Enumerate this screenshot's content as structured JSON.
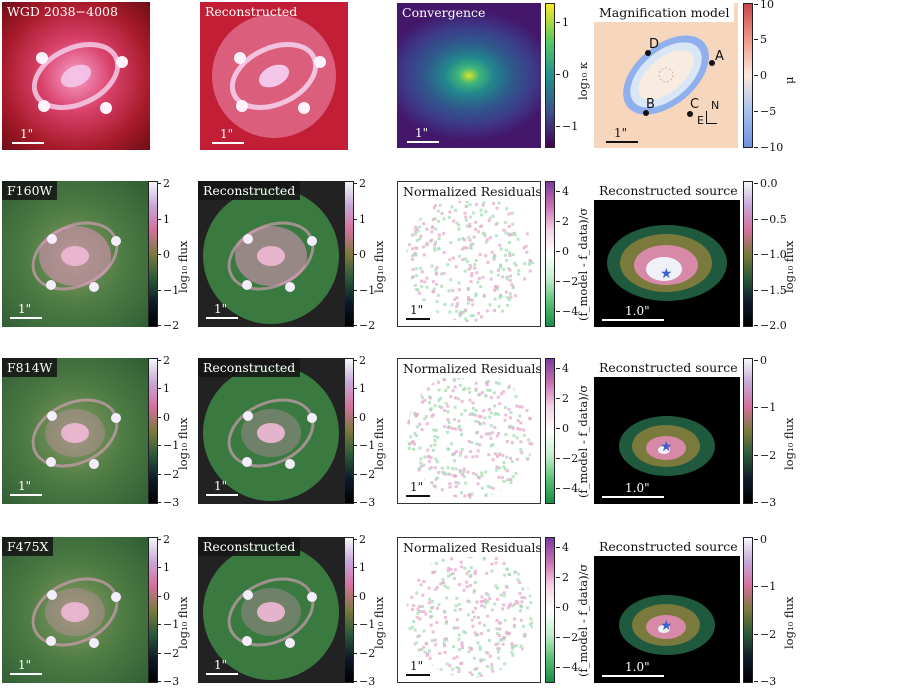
{
  "row1": {
    "p1_title": "WGD 2038−4008",
    "p2_title": "Reconstructed",
    "p3_title": "Convergence",
    "p4_title": "Magnification model",
    "scale": "1\"",
    "conv_ticks": [
      "1",
      "0",
      "−1"
    ],
    "conv_label": "log₁₀ κ",
    "mag_ticks": [
      "10",
      "5",
      "0",
      "−5",
      "−10"
    ],
    "mag_label": "μ",
    "images": [
      "A",
      "B",
      "C",
      "D"
    ],
    "compass": {
      "n": "N",
      "e": "E"
    }
  },
  "rows": [
    {
      "band": "F160W",
      "recon": "Reconstructed",
      "resid": "Normalized Residuals",
      "source": "Reconstructed source",
      "flux_ticks": [
        "2",
        "1",
        "0",
        "−1",
        "−2"
      ],
      "flux_label": "log₁₀ flux",
      "resid_ticks": [
        "4",
        "2",
        "0",
        "−2",
        "−4"
      ],
      "resid_label": "(f_model - f_data)/σ",
      "src_ticks": [
        "0.0",
        "−0.5",
        "−1.0",
        "−1.5",
        "−2.0"
      ],
      "src_label": "log₁₀ flux",
      "scale": "1\"",
      "src_scale": "1.0\""
    },
    {
      "band": "F814W",
      "recon": "Reconstructed",
      "resid": "Normalized Residuals",
      "source": "Reconstructed source",
      "flux_ticks": [
        "2",
        "1",
        "0",
        "−1",
        "−2",
        "−3"
      ],
      "flux_label": "log₁₀ flux",
      "resid_ticks": [
        "4",
        "2",
        "0",
        "−2",
        "−4"
      ],
      "resid_label": "(f_model - f_data)/σ",
      "src_ticks": [
        "0",
        "−1",
        "−2",
        "−3"
      ],
      "src_label": "log₁₀ flux",
      "scale": "1\"",
      "src_scale": "1.0\""
    },
    {
      "band": "F475X",
      "recon": "Reconstructed",
      "resid": "Normalized Residuals",
      "source": "Reconstructed source",
      "flux_ticks": [
        "2",
        "1",
        "0",
        "−1",
        "−2",
        "−3"
      ],
      "flux_label": "log₁₀ flux",
      "resid_ticks": [
        "4",
        "2",
        "0",
        "−2",
        "−4"
      ],
      "resid_label": "(f_model - f_data)/σ",
      "src_ticks": [
        "0",
        "−1",
        "−2",
        "−3"
      ],
      "src_label": "log₁₀ flux",
      "scale": "1\"",
      "src_scale": "1.0\""
    }
  ]
}
